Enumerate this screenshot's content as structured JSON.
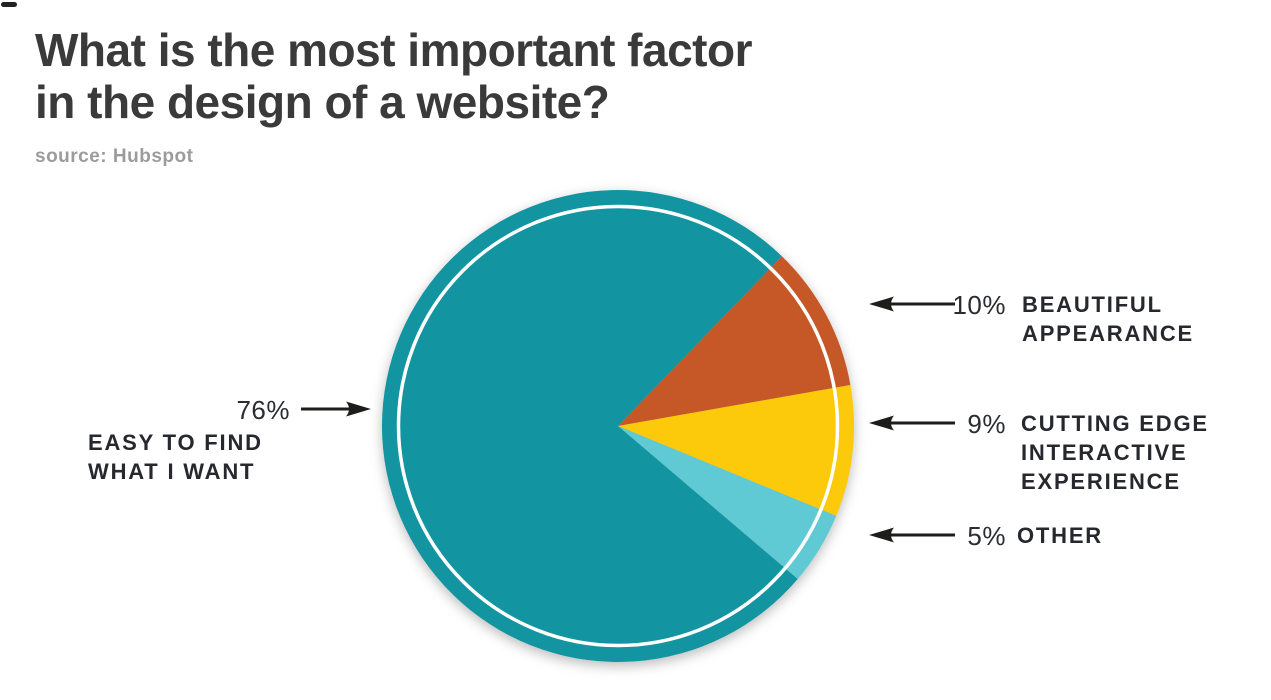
{
  "header": {
    "title_line1": "What is the most important factor",
    "title_line2": "in the design of a website?",
    "source": "source: Hubspot"
  },
  "chart_data": {
    "type": "pie",
    "title": "What is the most important factor in the design of a website?",
    "source": "Hubspot",
    "start_angle_deg": 46,
    "direction": "clockwise",
    "legend_position": "callout-labels-left-and-right",
    "slices": [
      {
        "label": "BEAUTIFUL APPEARANCE",
        "value": 10,
        "pct_label": "10%",
        "color": "#C65827"
      },
      {
        "label": "CUTTING EDGE INTERACTIVE EXPERIENCE",
        "value": 9,
        "pct_label": "9%",
        "color": "#FCC90B"
      },
      {
        "label": "OTHER",
        "value": 5,
        "pct_label": "5%",
        "color": "#5FC9D4"
      },
      {
        "label": "EASY TO FIND WHAT I WANT",
        "value": 76,
        "pct_label": "76%",
        "color": "#1295A1"
      }
    ],
    "inner_ring": {
      "color": "#FFFFFF",
      "radius_ratio": 0.93,
      "stroke_width": 3.5
    }
  },
  "labels": {
    "left": {
      "pct": "76%",
      "line1": "EASY TO FIND",
      "line2": "WHAT I WANT"
    },
    "right": [
      {
        "pct": "10%",
        "line1": "BEAUTIFUL",
        "line2": "APPEARANCE"
      },
      {
        "pct": "9%",
        "line1": "CUTTING EDGE",
        "line2": "INTERACTIVE",
        "line3": "EXPERIENCE"
      },
      {
        "pct": "5%",
        "line1": "OTHER"
      }
    ]
  }
}
